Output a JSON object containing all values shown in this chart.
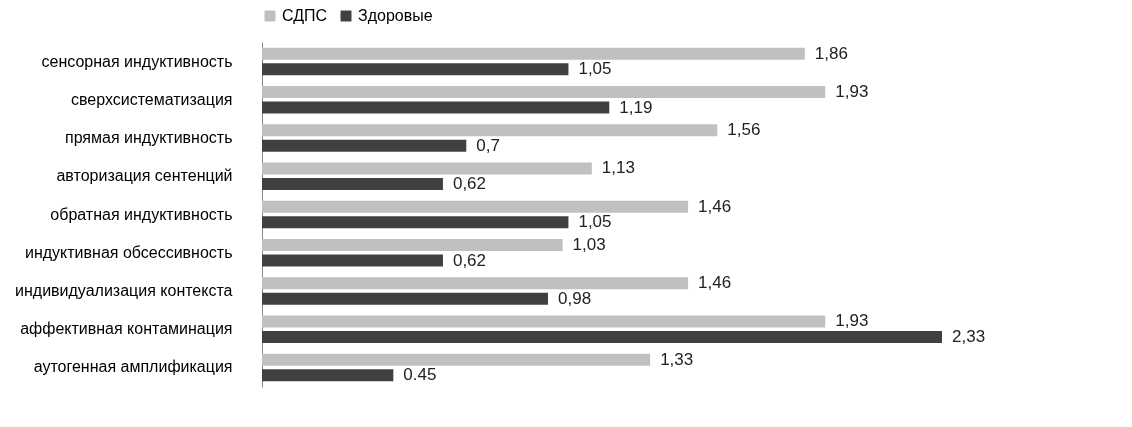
{
  "chart_data": {
    "type": "bar",
    "orientation": "horizontal",
    "legend": "top",
    "grid": false,
    "categories": [
      "сенсорная  индуктивность",
      "сверхсистематизация",
      "прямая  индуктивность",
      "авторизация  сентенций",
      "обратная  индуктивность",
      "индуктивная  обсессивность",
      "индивидуализация   контекста",
      "аффективная контаминация",
      "аутогенная  амплификация"
    ],
    "series": [
      {
        "name": "СДПС",
        "color": "#c0c0c0",
        "values": [
          1.86,
          1.93,
          1.56,
          1.13,
          1.46,
          1.03,
          1.46,
          1.93,
          1.33
        ],
        "value_labels": [
          "1,86",
          "1,93",
          "1,56",
          "1,13",
          "1,46",
          "1,03",
          "1,46",
          "1,93",
          "1,33"
        ]
      },
      {
        "name": "Здоровые",
        "color": "#404040",
        "values": [
          1.05,
          1.19,
          0.7,
          0.62,
          1.05,
          0.62,
          0.98,
          2.33,
          0.45
        ],
        "value_labels": [
          "1,05",
          "1,19",
          "0,7",
          "0,62",
          "1,05",
          "0,62",
          "0,98",
          "2,33",
          "0.45"
        ]
      }
    ]
  }
}
